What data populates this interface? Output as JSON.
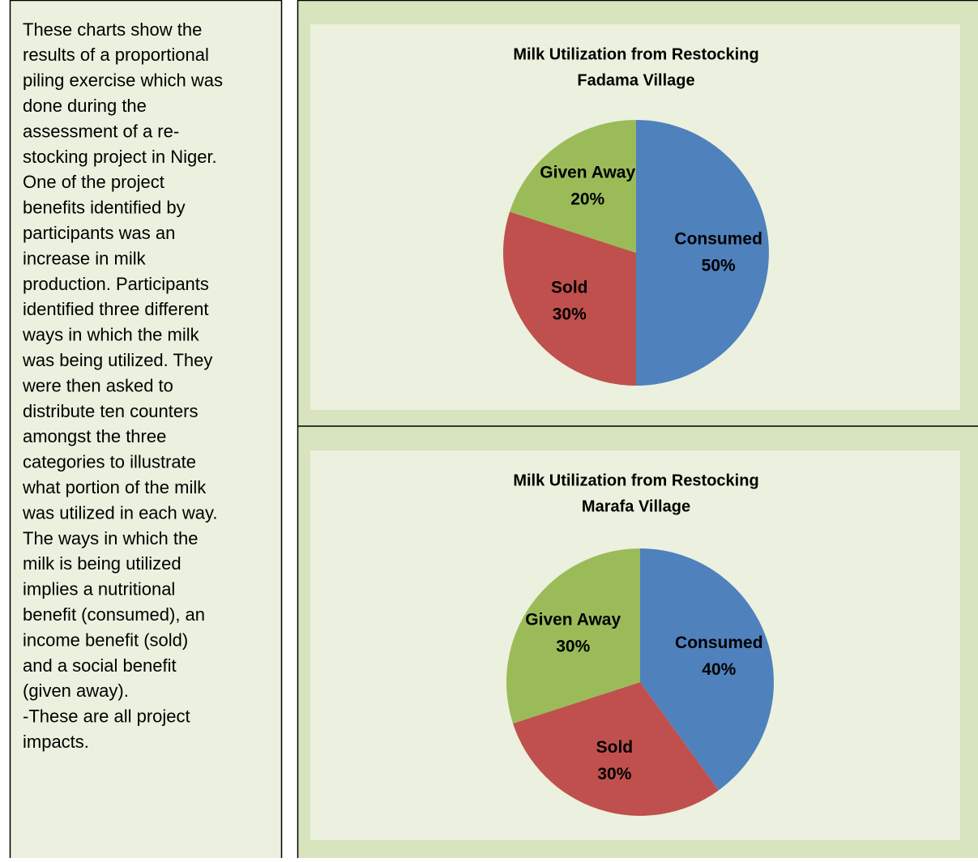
{
  "text": {
    "lines": [
      "These charts show the",
      "results of a proportional",
      "piling exercise which was",
      "done during the",
      "assessment of a re-",
      "stocking project in Niger.",
      "One of the project",
      "benefits identified by",
      "participants was an",
      "increase in milk",
      "production. Participants",
      "identified three different",
      "ways in which the milk",
      "was being utilized.  They",
      "were then asked to",
      "distribute ten counters",
      "amongst the three",
      "categories to illustrate",
      "what portion of the milk",
      "was utilized in each way.",
      "The ways in which the",
      "milk is being utilized",
      "implies a nutritional",
      "benefit (consumed), an",
      "income benefit (sold)",
      "and a social benefit",
      "(given away).",
      "-These are all project",
      "impacts."
    ]
  },
  "chart_data": [
    {
      "type": "pie",
      "title": [
        "Milk Utilization from Restocking",
        "Fadama Village"
      ],
      "categories": [
        "Consumed",
        "Sold",
        "Given Away"
      ],
      "values": [
        50,
        30,
        20
      ],
      "value_labels": [
        "50%",
        "30%",
        "20%"
      ],
      "colors": [
        "#4f81bd",
        "#c0504d",
        "#9bbb59"
      ]
    },
    {
      "type": "pie",
      "title": [
        "Milk Utilization from Restocking",
        "Marafa Village"
      ],
      "categories": [
        "Consumed",
        "Sold",
        "Given Away"
      ],
      "values": [
        40,
        30,
        30
      ],
      "value_labels": [
        "40%",
        "30%",
        "30%"
      ],
      "colors": [
        "#4f81bd",
        "#c0504d",
        "#9bbb59"
      ]
    }
  ]
}
